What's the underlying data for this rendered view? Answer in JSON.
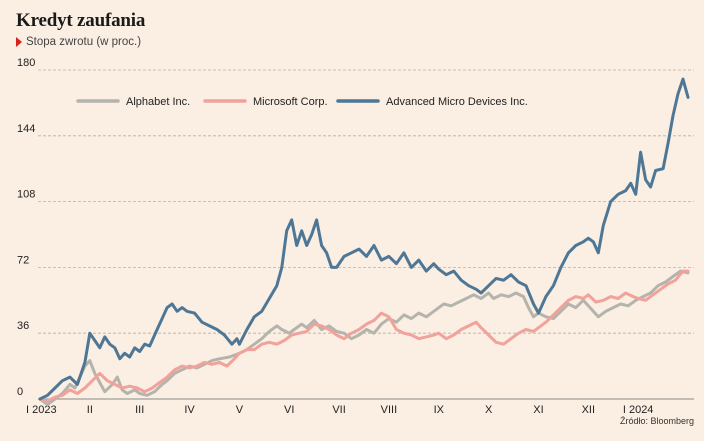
{
  "chart_data": {
    "type": "line",
    "title": "Kredyt zaufania",
    "subtitle": "Stopa zwrotu (w proc.)",
    "source": "Źródło: Bloomberg",
    "ylim": [
      0,
      180
    ],
    "yticks": [
      0,
      36,
      72,
      108,
      144,
      180
    ],
    "xlim": [
      0,
      13
    ],
    "xticks": [
      {
        "pos": 0,
        "label": "I 2023"
      },
      {
        "pos": 1,
        "label": "II"
      },
      {
        "pos": 2,
        "label": "III"
      },
      {
        "pos": 3,
        "label": "IV"
      },
      {
        "pos": 4,
        "label": "V"
      },
      {
        "pos": 5,
        "label": "VI"
      },
      {
        "pos": 6,
        "label": "VII"
      },
      {
        "pos": 7,
        "label": "VIII"
      },
      {
        "pos": 8,
        "label": "IX"
      },
      {
        "pos": 9,
        "label": "X"
      },
      {
        "pos": 10,
        "label": "XI"
      },
      {
        "pos": 11,
        "label": "XII"
      },
      {
        "pos": 12,
        "label": "I 2024"
      }
    ],
    "grid": "horizontal-dashed",
    "legend_position": "top-left",
    "series": [
      {
        "name": "Alphabet Inc.",
        "color": "#b4b4ad",
        "points": [
          [
            0,
            0
          ],
          [
            0.15,
            -3
          ],
          [
            0.3,
            0
          ],
          [
            0.45,
            3
          ],
          [
            0.6,
            8
          ],
          [
            0.7,
            6
          ],
          [
            0.8,
            12
          ],
          [
            0.9,
            18
          ],
          [
            1,
            21
          ],
          [
            1.1,
            14
          ],
          [
            1.2,
            9
          ],
          [
            1.3,
            4
          ],
          [
            1.45,
            8
          ],
          [
            1.55,
            12
          ],
          [
            1.65,
            5
          ],
          [
            1.75,
            3
          ],
          [
            1.9,
            5
          ],
          [
            2,
            3
          ],
          [
            2.15,
            2
          ],
          [
            2.3,
            4
          ],
          [
            2.45,
            8
          ],
          [
            2.55,
            10
          ],
          [
            2.7,
            14
          ],
          [
            2.85,
            16
          ],
          [
            3,
            18
          ],
          [
            3.15,
            17
          ],
          [
            3.3,
            19
          ],
          [
            3.45,
            21
          ],
          [
            3.6,
            22
          ],
          [
            3.8,
            23
          ],
          [
            4,
            25
          ],
          [
            4.15,
            27
          ],
          [
            4.3,
            30
          ],
          [
            4.45,
            33
          ],
          [
            4.6,
            37
          ],
          [
            4.75,
            40
          ],
          [
            4.85,
            38
          ],
          [
            5,
            36
          ],
          [
            5.1,
            38
          ],
          [
            5.25,
            41
          ],
          [
            5.35,
            39
          ],
          [
            5.5,
            43
          ],
          [
            5.65,
            38
          ],
          [
            5.8,
            40
          ],
          [
            5.95,
            37
          ],
          [
            6.1,
            36
          ],
          [
            6.25,
            33
          ],
          [
            6.4,
            35
          ],
          [
            6.55,
            38
          ],
          [
            6.7,
            36
          ],
          [
            6.85,
            41
          ],
          [
            7,
            44
          ],
          [
            7.15,
            42
          ],
          [
            7.3,
            46
          ],
          [
            7.45,
            44
          ],
          [
            7.6,
            47
          ],
          [
            7.75,
            45
          ],
          [
            7.9,
            48
          ],
          [
            8,
            50
          ],
          [
            8.1,
            52
          ],
          [
            8.25,
            51
          ],
          [
            8.4,
            53
          ],
          [
            8.55,
            55
          ],
          [
            8.7,
            57
          ],
          [
            8.85,
            55
          ],
          [
            9,
            58
          ],
          [
            9.1,
            55
          ],
          [
            9.25,
            57
          ],
          [
            9.4,
            56
          ],
          [
            9.55,
            58
          ],
          [
            9.7,
            56
          ],
          [
            9.8,
            50
          ],
          [
            9.9,
            45
          ],
          [
            10,
            47
          ],
          [
            10.15,
            45
          ],
          [
            10.3,
            44
          ],
          [
            10.45,
            48
          ],
          [
            10.6,
            52
          ],
          [
            10.75,
            50
          ],
          [
            10.9,
            54
          ],
          [
            11,
            51
          ],
          [
            11.1,
            48
          ],
          [
            11.2,
            45
          ],
          [
            11.35,
            48
          ],
          [
            11.5,
            50
          ],
          [
            11.65,
            52
          ],
          [
            11.8,
            51
          ],
          [
            11.95,
            54
          ],
          [
            12.1,
            56
          ],
          [
            12.25,
            58
          ],
          [
            12.4,
            62
          ],
          [
            12.55,
            64
          ],
          [
            12.7,
            67
          ],
          [
            12.85,
            70
          ],
          [
            13,
            69
          ]
        ]
      },
      {
        "name": "Microsoft Corp.",
        "color": "#f0a29b",
        "points": [
          [
            0,
            0
          ],
          [
            0.15,
            -1
          ],
          [
            0.3,
            1
          ],
          [
            0.45,
            2
          ],
          [
            0.6,
            5
          ],
          [
            0.75,
            3
          ],
          [
            0.9,
            6
          ],
          [
            1.05,
            10
          ],
          [
            1.2,
            14
          ],
          [
            1.35,
            10
          ],
          [
            1.5,
            8
          ],
          [
            1.65,
            6
          ],
          [
            1.8,
            7
          ],
          [
            1.95,
            6
          ],
          [
            2.1,
            4
          ],
          [
            2.25,
            6
          ],
          [
            2.4,
            9
          ],
          [
            2.55,
            12
          ],
          [
            2.7,
            16
          ],
          [
            2.85,
            18
          ],
          [
            3,
            17
          ],
          [
            3.15,
            18
          ],
          [
            3.3,
            20
          ],
          [
            3.45,
            19
          ],
          [
            3.6,
            20
          ],
          [
            3.75,
            18
          ],
          [
            3.9,
            22
          ],
          [
            4,
            25
          ],
          [
            4.15,
            27
          ],
          [
            4.3,
            27
          ],
          [
            4.45,
            30
          ],
          [
            4.6,
            31
          ],
          [
            4.75,
            30
          ],
          [
            4.9,
            32
          ],
          [
            5.05,
            35
          ],
          [
            5.2,
            36
          ],
          [
            5.35,
            37
          ],
          [
            5.5,
            41
          ],
          [
            5.65,
            40
          ],
          [
            5.8,
            38
          ],
          [
            5.95,
            35
          ],
          [
            6.1,
            33
          ],
          [
            6.25,
            36
          ],
          [
            6.4,
            38
          ],
          [
            6.55,
            41
          ],
          [
            6.7,
            43
          ],
          [
            6.85,
            47
          ],
          [
            7,
            45
          ],
          [
            7.15,
            38
          ],
          [
            7.3,
            36
          ],
          [
            7.45,
            35
          ],
          [
            7.6,
            33
          ],
          [
            7.75,
            34
          ],
          [
            7.9,
            35
          ],
          [
            8,
            36
          ],
          [
            8.15,
            33
          ],
          [
            8.3,
            35
          ],
          [
            8.45,
            38
          ],
          [
            8.6,
            40
          ],
          [
            8.75,
            42
          ],
          [
            8.85,
            39
          ],
          [
            9,
            35
          ],
          [
            9.15,
            31
          ],
          [
            9.3,
            30
          ],
          [
            9.45,
            33
          ],
          [
            9.6,
            36
          ],
          [
            9.75,
            38
          ],
          [
            9.9,
            37
          ],
          [
            10,
            39
          ],
          [
            10.15,
            42
          ],
          [
            10.3,
            46
          ],
          [
            10.45,
            50
          ],
          [
            10.6,
            54
          ],
          [
            10.75,
            56
          ],
          [
            10.9,
            55
          ],
          [
            11,
            57
          ],
          [
            11.15,
            53
          ],
          [
            11.3,
            54
          ],
          [
            11.45,
            56
          ],
          [
            11.6,
            55
          ],
          [
            11.75,
            58
          ],
          [
            11.9,
            56
          ],
          [
            12,
            55
          ],
          [
            12.15,
            54
          ],
          [
            12.3,
            57
          ],
          [
            12.45,
            60
          ],
          [
            12.6,
            63
          ],
          [
            12.75,
            65
          ],
          [
            12.9,
            70
          ],
          [
            13,
            70
          ]
        ]
      },
      {
        "name": "Advanced Micro Devices Inc.",
        "color": "#4e7796",
        "points": [
          [
            0,
            0
          ],
          [
            0.15,
            2
          ],
          [
            0.3,
            6
          ],
          [
            0.45,
            10
          ],
          [
            0.6,
            12
          ],
          [
            0.75,
            8
          ],
          [
            0.9,
            20
          ],
          [
            1,
            36
          ],
          [
            1.1,
            32
          ],
          [
            1.2,
            28
          ],
          [
            1.3,
            34
          ],
          [
            1.4,
            30
          ],
          [
            1.5,
            28
          ],
          [
            1.6,
            22
          ],
          [
            1.7,
            25
          ],
          [
            1.8,
            23
          ],
          [
            1.9,
            28
          ],
          [
            2,
            26
          ],
          [
            2.1,
            30
          ],
          [
            2.2,
            29
          ],
          [
            2.35,
            38
          ],
          [
            2.45,
            44
          ],
          [
            2.55,
            50
          ],
          [
            2.65,
            52
          ],
          [
            2.75,
            48
          ],
          [
            2.85,
            50
          ],
          [
            2.95,
            48
          ],
          [
            3.1,
            47
          ],
          [
            3.25,
            42
          ],
          [
            3.4,
            40
          ],
          [
            3.55,
            38
          ],
          [
            3.7,
            35
          ],
          [
            3.85,
            30
          ],
          [
            3.95,
            33
          ],
          [
            4,
            30
          ],
          [
            4.15,
            38
          ],
          [
            4.3,
            45
          ],
          [
            4.45,
            48
          ],
          [
            4.6,
            55
          ],
          [
            4.75,
            62
          ],
          [
            4.85,
            72
          ],
          [
            4.95,
            92
          ],
          [
            5.05,
            98
          ],
          [
            5.15,
            84
          ],
          [
            5.25,
            92
          ],
          [
            5.35,
            84
          ],
          [
            5.45,
            90
          ],
          [
            5.55,
            98
          ],
          [
            5.65,
            84
          ],
          [
            5.75,
            80
          ],
          [
            5.85,
            72
          ],
          [
            5.95,
            72
          ],
          [
            6.1,
            78
          ],
          [
            6.25,
            80
          ],
          [
            6.4,
            82
          ],
          [
            6.55,
            78
          ],
          [
            6.7,
            84
          ],
          [
            6.85,
            76
          ],
          [
            7,
            78
          ],
          [
            7.15,
            74
          ],
          [
            7.3,
            80
          ],
          [
            7.45,
            72
          ],
          [
            7.6,
            76
          ],
          [
            7.75,
            70
          ],
          [
            7.9,
            74
          ],
          [
            8,
            71
          ],
          [
            8.15,
            68
          ],
          [
            8.3,
            70
          ],
          [
            8.45,
            65
          ],
          [
            8.6,
            62
          ],
          [
            8.75,
            60
          ],
          [
            8.85,
            58
          ],
          [
            9,
            62
          ],
          [
            9.15,
            66
          ],
          [
            9.3,
            65
          ],
          [
            9.45,
            68
          ],
          [
            9.6,
            64
          ],
          [
            9.75,
            62
          ],
          [
            9.9,
            52
          ],
          [
            10,
            47
          ],
          [
            10.15,
            56
          ],
          [
            10.3,
            62
          ],
          [
            10.45,
            72
          ],
          [
            10.6,
            80
          ],
          [
            10.75,
            84
          ],
          [
            10.9,
            86
          ],
          [
            11,
            88
          ],
          [
            11.1,
            86
          ],
          [
            11.2,
            80
          ],
          [
            11.3,
            95
          ],
          [
            11.45,
            108
          ],
          [
            11.6,
            112
          ],
          [
            11.75,
            114
          ],
          [
            11.85,
            118
          ],
          [
            11.95,
            112
          ],
          [
            12.05,
            135
          ],
          [
            12.15,
            120
          ],
          [
            12.25,
            116
          ],
          [
            12.35,
            125
          ],
          [
            12.5,
            126
          ],
          [
            12.6,
            140
          ],
          [
            12.7,
            155
          ],
          [
            12.8,
            167
          ],
          [
            12.9,
            175
          ],
          [
            13,
            165
          ]
        ]
      }
    ]
  }
}
